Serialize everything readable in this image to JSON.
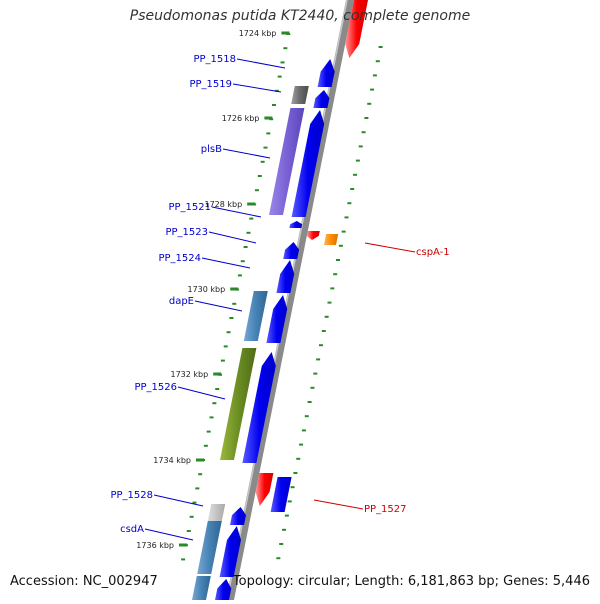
{
  "title": "Pseudomonas putida KT2440, complete genome",
  "accession": "Accession: NC_002947",
  "topology": "Topology: circular; Length: 6,181,863 bp; Genes: 5,446",
  "kbp_labels": [
    "1724 kbp",
    "1726 kbp",
    "1728 kbp",
    "1730 kbp",
    "1732 kbp",
    "1734 kbp",
    "1736 kbp"
  ],
  "gene_labels_left": [
    "PP_1518",
    "PP_1519",
    "plsB",
    "PP_1521",
    "PP_1523",
    "PP_1524",
    "dapE",
    "PP_1526",
    "PP_1528",
    "csdA"
  ],
  "gene_labels_right": [
    "cspA-1",
    "PP_1527"
  ],
  "colors": {
    "forward_strand": "#0000ee",
    "reverse_strand": "#ee0000",
    "label_forward": "#0000cc",
    "label_reverse": "#cc0000",
    "tick": "#2a8a2a",
    "backbone": "#888888"
  }
}
